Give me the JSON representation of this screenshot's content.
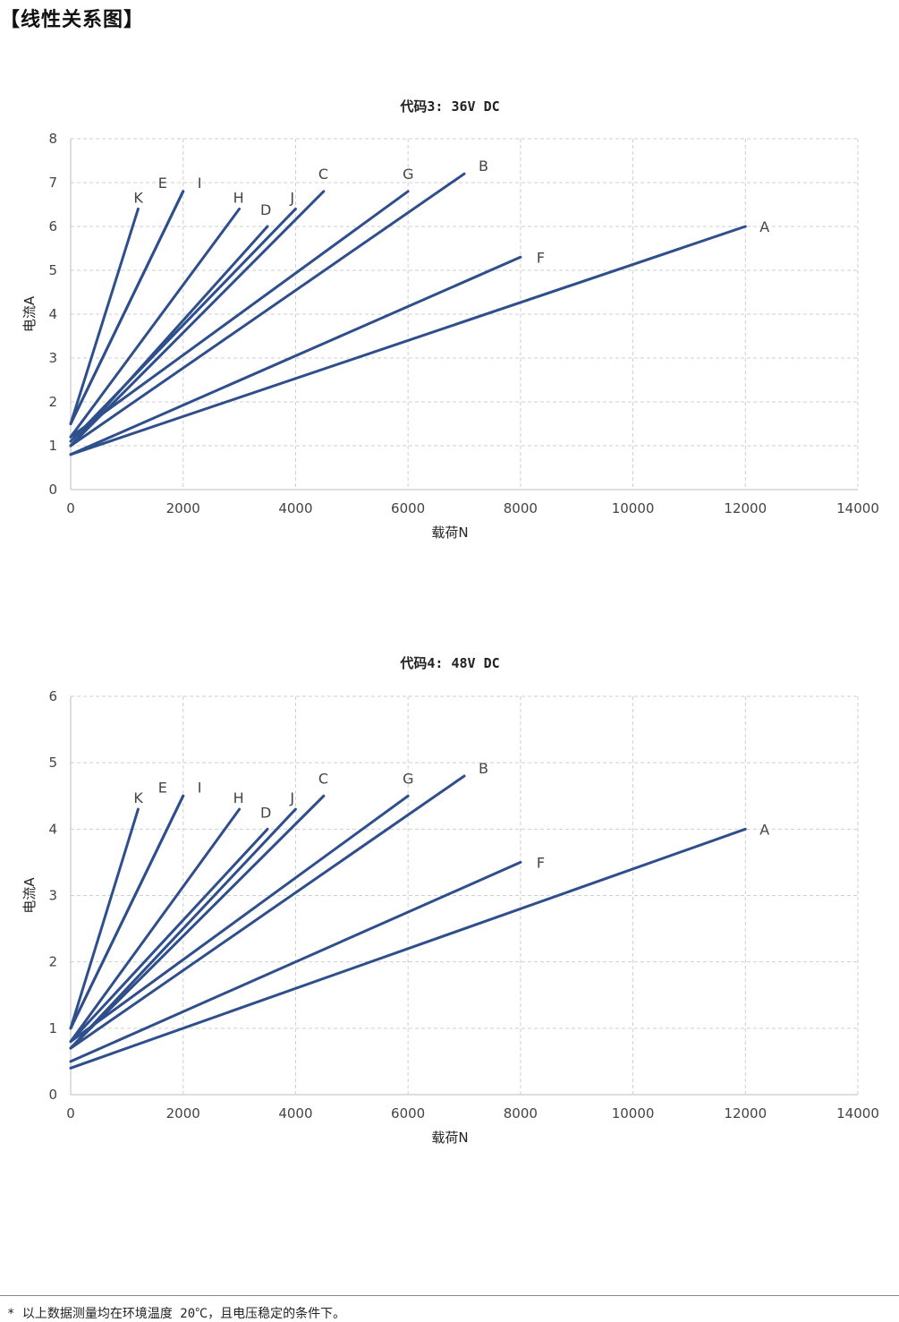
{
  "page": {
    "heading": "【线性关系图】",
    "footnote": "* 以上数据测量均在环境温度 20℃，且电压稳定的条件下。"
  },
  "colors": {
    "series": "#2e4e8c",
    "grid": "#cfcfcf"
  },
  "chart_data": [
    {
      "type": "line",
      "title": "代码3: 36V DC",
      "xlabel": "载荷N",
      "ylabel": "电流A",
      "xlim": [
        0,
        14000
      ],
      "ylim": [
        0,
        8
      ],
      "xticks": [
        0,
        2000,
        4000,
        6000,
        8000,
        10000,
        12000,
        14000
      ],
      "yticks": [
        0,
        1,
        2,
        3,
        4,
        5,
        6,
        7,
        8
      ],
      "grid": true,
      "legend": "none",
      "series": [
        {
          "name": "A",
          "x": [
            0,
            12000
          ],
          "y": [
            0.8,
            6.0
          ]
        },
        {
          "name": "B",
          "x": [
            0,
            7000
          ],
          "y": [
            1.0,
            7.2
          ]
        },
        {
          "name": "C",
          "x": [
            0,
            4500
          ],
          "y": [
            1.0,
            6.8
          ]
        },
        {
          "name": "D",
          "x": [
            0,
            3500
          ],
          "y": [
            1.0,
            6.0
          ]
        },
        {
          "name": "E",
          "x": [
            0,
            2000
          ],
          "y": [
            1.5,
            6.8
          ]
        },
        {
          "name": "F",
          "x": [
            0,
            8000
          ],
          "y": [
            0.8,
            5.3
          ]
        },
        {
          "name": "G",
          "x": [
            0,
            6000
          ],
          "y": [
            1.2,
            6.8
          ]
        },
        {
          "name": "H",
          "x": [
            0,
            3000
          ],
          "y": [
            1.2,
            6.4
          ]
        },
        {
          "name": "I",
          "x": [
            0,
            2000
          ],
          "y": [
            1.5,
            6.8
          ]
        },
        {
          "name": "J",
          "x": [
            0,
            4000
          ],
          "y": [
            1.1,
            6.4
          ]
        },
        {
          "name": "K",
          "x": [
            0,
            1200
          ],
          "y": [
            1.5,
            6.4
          ]
        }
      ]
    },
    {
      "type": "line",
      "title": "代码4: 48V DC",
      "xlabel": "载荷N",
      "ylabel": "电流A",
      "xlim": [
        0,
        14000
      ],
      "ylim": [
        0,
        6
      ],
      "xticks": [
        0,
        2000,
        4000,
        6000,
        8000,
        10000,
        12000,
        14000
      ],
      "yticks": [
        0,
        1,
        2,
        3,
        4,
        5,
        6
      ],
      "grid": true,
      "legend": "none",
      "series": [
        {
          "name": "A",
          "x": [
            0,
            12000
          ],
          "y": [
            0.4,
            4.0
          ]
        },
        {
          "name": "B",
          "x": [
            0,
            7000
          ],
          "y": [
            0.7,
            4.8
          ]
        },
        {
          "name": "C",
          "x": [
            0,
            4500
          ],
          "y": [
            0.7,
            4.5
          ]
        },
        {
          "name": "D",
          "x": [
            0,
            3500
          ],
          "y": [
            0.8,
            4.0
          ]
        },
        {
          "name": "E",
          "x": [
            0,
            2000
          ],
          "y": [
            1.0,
            4.5
          ]
        },
        {
          "name": "F",
          "x": [
            0,
            8000
          ],
          "y": [
            0.5,
            3.5
          ]
        },
        {
          "name": "G",
          "x": [
            0,
            6000
          ],
          "y": [
            0.8,
            4.5
          ]
        },
        {
          "name": "H",
          "x": [
            0,
            3000
          ],
          "y": [
            0.8,
            4.3
          ]
        },
        {
          "name": "I",
          "x": [
            0,
            2000
          ],
          "y": [
            1.0,
            4.5
          ]
        },
        {
          "name": "J",
          "x": [
            0,
            4000
          ],
          "y": [
            0.7,
            4.3
          ]
        },
        {
          "name": "K",
          "x": [
            0,
            1200
          ],
          "y": [
            1.0,
            4.3
          ]
        }
      ]
    }
  ]
}
